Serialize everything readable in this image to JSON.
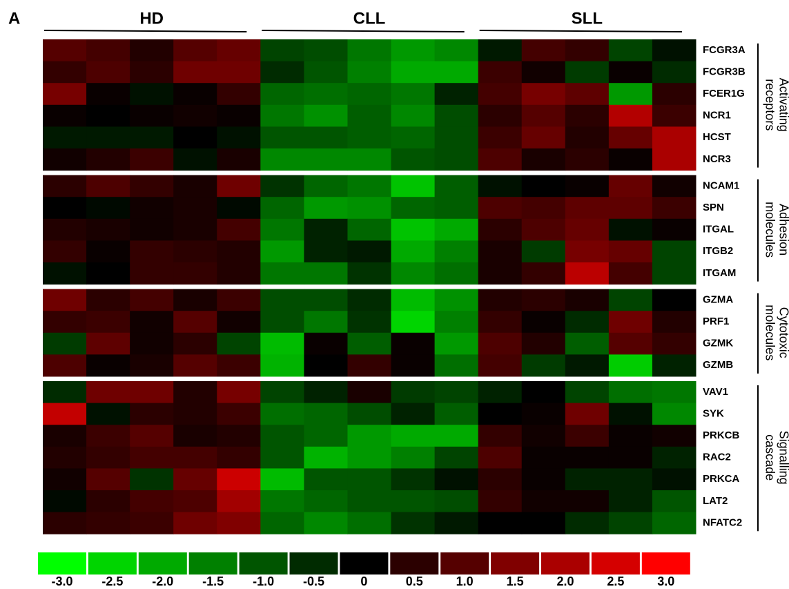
{
  "chart_data": {
    "type": "heatmap",
    "panel_label": "A",
    "column_groups": [
      "HD",
      "CLL",
      "SLL"
    ],
    "zlim": [
      -3,
      3
    ],
    "low_color": "#00ff00",
    "mid_color": "#000000",
    "high_color": "#ff0000",
    "row_groups": [
      {
        "label": [
          "Activating",
          "receptors"
        ],
        "rows": [
          {
            "name": "FCGR3A",
            "values": [
              1.0,
              0.8,
              0.4,
              1.0,
              1.2,
              -0.8,
              -0.9,
              -1.4,
              -1.8,
              -1.6,
              -0.3,
              0.8,
              0.6,
              -0.8,
              -0.2
            ]
          },
          {
            "name": "FCGR3B",
            "values": [
              0.6,
              0.9,
              0.5,
              1.3,
              1.3,
              -0.5,
              -1.0,
              -1.5,
              -2.0,
              -2.0,
              0.7,
              0.2,
              -0.7,
              0.1,
              -0.5
            ]
          },
          {
            "name": "FCER1G",
            "values": [
              1.4,
              0.1,
              -0.2,
              0.1,
              0.6,
              -1.2,
              -1.3,
              -1.2,
              -1.4,
              -0.4,
              0.8,
              1.4,
              1.1,
              -1.8,
              0.5
            ]
          },
          {
            "name": "NCR1",
            "values": [
              0.1,
              0,
              0.1,
              0.2,
              0.1,
              -1.4,
              -1.7,
              -1.1,
              -1.6,
              -0.9,
              0.5,
              1.0,
              0.5,
              2.1,
              0.7
            ]
          },
          {
            "name": "HCST",
            "values": [
              -0.3,
              -0.3,
              -0.3,
              0,
              -0.2,
              -1.0,
              -1.0,
              -1.1,
              -1.2,
              -0.9,
              0.7,
              1.2,
              0.4,
              1.2,
              2.0
            ]
          },
          {
            "name": "NCR3",
            "values": [
              0.2,
              0.4,
              0.7,
              -0.2,
              0.3,
              -1.6,
              -1.6,
              -1.6,
              -1.0,
              -0.9,
              0.9,
              0.3,
              0.5,
              0.1,
              2.0
            ]
          }
        ]
      },
      {
        "label": [
          "Adhesion",
          "molecules"
        ],
        "rows": [
          {
            "name": "NCAM1",
            "values": [
              0.5,
              0.9,
              0.6,
              0.3,
              1.3,
              -0.6,
              -1.2,
              -1.4,
              -2.3,
              -1.1,
              -0.2,
              0,
              0.1,
              1.2,
              0.2
            ]
          },
          {
            "name": "SPN",
            "values": [
              0,
              -0.1,
              0.2,
              0.3,
              -0.1,
              -1.2,
              -1.8,
              -1.7,
              -1.2,
              -1.1,
              0.9,
              0.8,
              1.1,
              1.1,
              0.7
            ]
          },
          {
            "name": "ITGAL",
            "values": [
              0.4,
              0.3,
              0.2,
              0.3,
              0.8,
              -1.4,
              -0.4,
              -1.2,
              -2.3,
              -2.0,
              0.5,
              0.9,
              1.2,
              -0.2,
              0.1
            ]
          },
          {
            "name": "ITGB2",
            "values": [
              0.6,
              0.1,
              0.6,
              0.5,
              0.4,
              -1.8,
              -0.4,
              -0.3,
              -2.0,
              -1.5,
              0.3,
              -0.7,
              1.4,
              1.2,
              -0.8
            ]
          },
          {
            "name": "ITGAM",
            "values": [
              -0.2,
              0,
              0.6,
              0.6,
              0.4,
              -1.4,
              -1.4,
              -0.6,
              -1.6,
              -1.3,
              0.3,
              0.6,
              2.2,
              0.8,
              -0.8
            ]
          }
        ]
      },
      {
        "label": [
          "Cytotoxic",
          "molecules"
        ],
        "rows": [
          {
            "name": "GZMA",
            "values": [
              1.3,
              0.5,
              0.8,
              0.3,
              0.7,
              -0.9,
              -0.9,
              -0.5,
              -2.2,
              -1.7,
              0.4,
              0.5,
              0.3,
              -0.8,
              0
            ]
          },
          {
            "name": "PRF1",
            "values": [
              0.6,
              0.7,
              0.2,
              1.0,
              0.2,
              -0.9,
              -1.4,
              -0.6,
              -2.5,
              -1.5,
              0.6,
              0.1,
              -0.5,
              1.3,
              0.4
            ]
          },
          {
            "name": "GZMK",
            "values": [
              -0.7,
              1.1,
              0.2,
              0.5,
              -0.8,
              -2.2,
              0.1,
              -1.1,
              0.1,
              -1.8,
              0.9,
              0.4,
              -1.1,
              1.0,
              0.6
            ]
          },
          {
            "name": "GZMB",
            "values": [
              0.9,
              0.1,
              0.3,
              1.0,
              0.7,
              -2.1,
              0,
              0.6,
              0.1,
              -1.3,
              0.8,
              -0.7,
              -0.3,
              -2.4,
              -0.4
            ]
          }
        ]
      },
      {
        "label": [
          "Signalling",
          "cascade"
        ],
        "rows": [
          {
            "name": "VAV1",
            "values": [
              -0.5,
              1.3,
              1.3,
              0.4,
              1.4,
              -0.8,
              -0.4,
              0.3,
              -0.7,
              -0.8,
              -0.4,
              0,
              -0.8,
              -1.3,
              -1.4
            ]
          },
          {
            "name": "SYK",
            "values": [
              2.3,
              -0.2,
              0.5,
              0.4,
              0.7,
              -1.3,
              -1.2,
              -0.9,
              -0.4,
              -1.1,
              0,
              0.1,
              1.3,
              -0.2,
              -1.6
            ]
          },
          {
            "name": "PRKCB",
            "values": [
              0.3,
              0.7,
              1.0,
              0.3,
              0.4,
              -1.0,
              -1.2,
              -1.8,
              -2.0,
              -2.0,
              0.6,
              0.2,
              0.7,
              0.1,
              0.2
            ]
          },
          {
            "name": "RAC2",
            "values": [
              0.4,
              0.6,
              0.8,
              0.8,
              0.6,
              -1.0,
              -2.1,
              -1.8,
              -1.5,
              -0.8,
              0.9,
              0.1,
              0.1,
              0.1,
              -0.4
            ]
          },
          {
            "name": "PRKCA",
            "values": [
              0.2,
              1.0,
              -0.6,
              1.2,
              2.4,
              -2.2,
              -1.0,
              -1.0,
              -0.6,
              -0.2,
              0.5,
              0.1,
              -0.4,
              -0.4,
              -0.2
            ]
          },
          {
            "name": "LAT2",
            "values": [
              -0.1,
              0.5,
              0.8,
              0.9,
              1.9,
              -1.4,
              -1.2,
              -1.0,
              -1.0,
              -0.9,
              0.6,
              0.2,
              0.2,
              -0.4,
              -1.0
            ]
          },
          {
            "name": "NFATC2",
            "values": [
              0.5,
              0.6,
              0.7,
              1.3,
              1.5,
              -1.2,
              -1.6,
              -1.3,
              -0.6,
              -0.3,
              0,
              0,
              -0.5,
              -0.8,
              -1.2
            ]
          }
        ]
      }
    ],
    "colorbar_ticks": [
      {
        "value": -3,
        "label": "-3.0"
      },
      {
        "value": -2.5,
        "label": "-2.5"
      },
      {
        "value": -2,
        "label": "-2.0"
      },
      {
        "value": -1.5,
        "label": "-1.5"
      },
      {
        "value": -1,
        "label": "-1.0"
      },
      {
        "value": -0.5,
        "label": "-0.5"
      },
      0,
      0.5,
      {
        "value": 1,
        "label": "1.0"
      },
      1.5,
      {
        "value": 2,
        "label": "2.0"
      },
      2.5,
      {
        "value": 3,
        "label": "3.0"
      }
    ]
  }
}
